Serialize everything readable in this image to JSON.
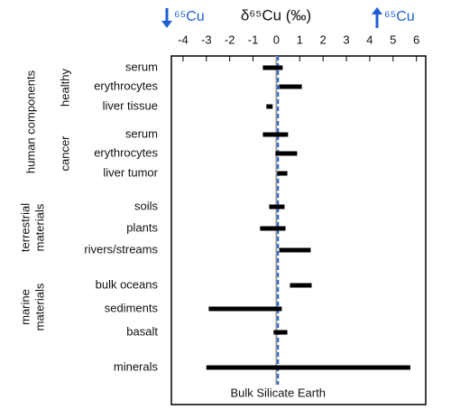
{
  "chart_data": {
    "type": "range_bar",
    "title": "δ⁶⁵Cu (‰)",
    "annotations": {
      "left": "⁶⁵Cu",
      "right": "⁶⁵Cu"
    },
    "categories": [
      "serum",
      "erythrocytes",
      "liver tissue",
      "serum",
      "erythrocytes",
      "liver tumor",
      "soils",
      "plants",
      "rivers/streams",
      "bulk oceans",
      "sediments",
      "basalt",
      "minerals"
    ],
    "low": [
      -0.58,
      0.12,
      -0.43,
      -0.58,
      -0.04,
      0.04,
      -0.31,
      -0.7,
      0.12,
      0.58,
      -2.9,
      -0.12,
      -3.0
    ],
    "high": [
      0.27,
      1.09,
      -0.16,
      0.5,
      0.89,
      0.47,
      0.35,
      0.39,
      1.47,
      1.51,
      0.23,
      0.47,
      5.74
    ],
    "color": "#000000",
    "groups": [
      [
        "human components"
      ],
      [
        "healthy"
      ],
      [
        "cancer"
      ],
      [
        "terrestrial",
        "materials"
      ],
      [
        "marine",
        "materials"
      ]
    ],
    "reference_lines": [
      {
        "value": 0,
        "color": "#999999"
      },
      {
        "value": 0.07,
        "color": "#1f5fd6",
        "dashed": true,
        "label": "Bulk Silicate Earth"
      }
    ],
    "xlim": [
      -4.5,
      6.4
    ],
    "xticks": [
      -4,
      -3,
      -2,
      -1,
      0,
      1,
      2,
      3,
      4,
      5,
      6
    ]
  }
}
